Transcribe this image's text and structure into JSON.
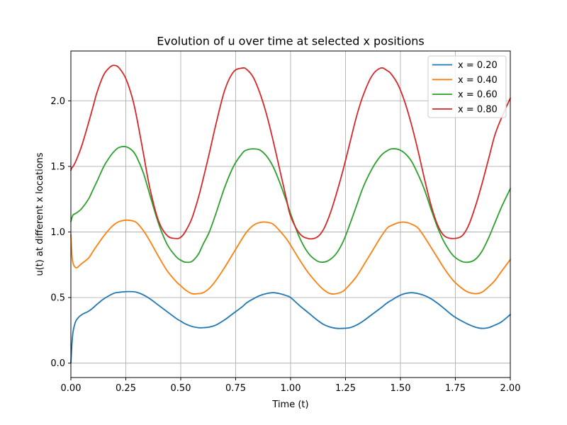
{
  "chart_data": {
    "type": "line",
    "title": "Evolution of u over time at selected x positions",
    "xlabel": "Time (t)",
    "ylabel": "u(t) at different x locations",
    "xlim": [
      0.0,
      2.0
    ],
    "ylim": [
      -0.11,
      2.38
    ],
    "grid": true,
    "legend_position": "top-right",
    "xticks": [
      "0.00",
      "0.25",
      "0.50",
      "0.75",
      "1.00",
      "1.25",
      "1.50",
      "1.75",
      "2.00"
    ],
    "xtick_values": [
      0,
      0.25,
      0.5,
      0.75,
      1.0,
      1.25,
      1.5,
      1.75,
      2.0
    ],
    "yticks": [
      "0.0",
      "0.5",
      "1.0",
      "1.5",
      "2.0"
    ],
    "ytick_values": [
      0,
      0.5,
      1.0,
      1.5,
      2.0
    ],
    "x": [
      0.0,
      0.005,
      0.01,
      0.02,
      0.03,
      0.05,
      0.08,
      0.1,
      0.12,
      0.15,
      0.18,
      0.2,
      0.22,
      0.25,
      0.28,
      0.3,
      0.33,
      0.36,
      0.4,
      0.44,
      0.48,
      0.5,
      0.52,
      0.55,
      0.58,
      0.6,
      0.63,
      0.66,
      0.7,
      0.74,
      0.78,
      0.8,
      0.83,
      0.86,
      0.89,
      0.92,
      0.95,
      0.98,
      1.0,
      1.04,
      1.08,
      1.12,
      1.15,
      1.18,
      1.21,
      1.24,
      1.27,
      1.3,
      1.33,
      1.37,
      1.41,
      1.44,
      1.46,
      1.49,
      1.52,
      1.55,
      1.58,
      1.61,
      1.64,
      1.67,
      1.7,
      1.74,
      1.78,
      1.81,
      1.84,
      1.87,
      1.9,
      1.93,
      1.96,
      2.0
    ],
    "series": [
      {
        "name": "x = 0.20",
        "color": "#1f77b4",
        "values": [
          0.0,
          0.15,
          0.24,
          0.31,
          0.34,
          0.37,
          0.395,
          0.42,
          0.45,
          0.49,
          0.52,
          0.535,
          0.54,
          0.545,
          0.545,
          0.54,
          0.52,
          0.49,
          0.44,
          0.39,
          0.34,
          0.32,
          0.3,
          0.28,
          0.27,
          0.27,
          0.275,
          0.29,
          0.33,
          0.38,
          0.43,
          0.46,
          0.49,
          0.515,
          0.53,
          0.537,
          0.53,
          0.515,
          0.5,
          0.44,
          0.385,
          0.33,
          0.295,
          0.275,
          0.265,
          0.265,
          0.27,
          0.29,
          0.32,
          0.37,
          0.42,
          0.46,
          0.48,
          0.51,
          0.53,
          0.537,
          0.53,
          0.515,
          0.49,
          0.455,
          0.415,
          0.36,
          0.32,
          0.295,
          0.275,
          0.265,
          0.27,
          0.29,
          0.315,
          0.37
        ]
      },
      {
        "name": "x = 0.40",
        "color": "#ff7f0e",
        "values": [
          0.98,
          0.82,
          0.76,
          0.73,
          0.73,
          0.76,
          0.8,
          0.85,
          0.9,
          0.97,
          1.03,
          1.06,
          1.08,
          1.09,
          1.085,
          1.07,
          1.01,
          0.93,
          0.81,
          0.7,
          0.62,
          0.59,
          0.56,
          0.53,
          0.53,
          0.535,
          0.57,
          0.63,
          0.73,
          0.84,
          0.95,
          1.0,
          1.05,
          1.072,
          1.075,
          1.06,
          1.01,
          0.95,
          0.9,
          0.79,
          0.69,
          0.61,
          0.56,
          0.53,
          0.53,
          0.55,
          0.6,
          0.66,
          0.74,
          0.85,
          0.96,
          1.03,
          1.05,
          1.07,
          1.075,
          1.06,
          1.03,
          0.96,
          0.88,
          0.8,
          0.72,
          0.63,
          0.57,
          0.54,
          0.53,
          0.54,
          0.58,
          0.63,
          0.7,
          0.79
        ]
      },
      {
        "name": "x = 0.60",
        "color": "#2ca02c",
        "values": [
          1.08,
          1.11,
          1.13,
          1.14,
          1.15,
          1.18,
          1.25,
          1.32,
          1.39,
          1.5,
          1.58,
          1.62,
          1.645,
          1.65,
          1.62,
          1.57,
          1.45,
          1.28,
          1.06,
          0.9,
          0.81,
          0.785,
          0.77,
          0.775,
          0.83,
          0.9,
          1.0,
          1.14,
          1.34,
          1.5,
          1.6,
          1.625,
          1.634,
          1.625,
          1.58,
          1.5,
          1.38,
          1.24,
          1.14,
          0.96,
          0.84,
          0.78,
          0.77,
          0.79,
          0.84,
          0.93,
          1.06,
          1.2,
          1.34,
          1.48,
          1.58,
          1.62,
          1.634,
          1.63,
          1.6,
          1.54,
          1.44,
          1.32,
          1.17,
          1.03,
          0.92,
          0.82,
          0.775,
          0.77,
          0.79,
          0.85,
          0.95,
          1.07,
          1.19,
          1.33
        ]
      },
      {
        "name": "x = 0.80",
        "color": "#d62728",
        "values": [
          1.47,
          1.49,
          1.5,
          1.53,
          1.57,
          1.66,
          1.83,
          1.95,
          2.07,
          2.2,
          2.26,
          2.27,
          2.25,
          2.17,
          2.02,
          1.87,
          1.6,
          1.33,
          1.08,
          0.97,
          0.95,
          0.96,
          1.0,
          1.1,
          1.26,
          1.39,
          1.6,
          1.82,
          2.08,
          2.22,
          2.25,
          2.24,
          2.18,
          2.06,
          1.9,
          1.7,
          1.48,
          1.26,
          1.12,
          0.99,
          0.95,
          0.96,
          1.02,
          1.14,
          1.3,
          1.48,
          1.68,
          1.88,
          2.04,
          2.19,
          2.25,
          2.23,
          2.2,
          2.12,
          1.99,
          1.82,
          1.62,
          1.4,
          1.2,
          1.05,
          0.97,
          0.95,
          0.97,
          1.05,
          1.19,
          1.36,
          1.55,
          1.74,
          1.87,
          2.02
        ]
      }
    ]
  }
}
